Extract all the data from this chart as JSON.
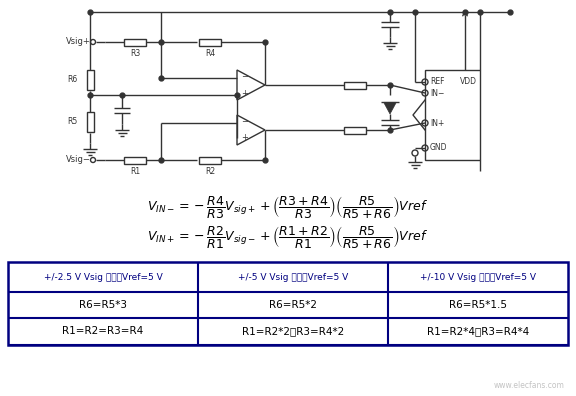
{
  "bg_color": "#ffffff",
  "fig_width": 5.76,
  "fig_height": 3.96,
  "eq1": "$V_{IN-} = -\\dfrac{R4}{R3}V_{sig+} + \\left(\\dfrac{R3+R4}{R3}\\right)\\left(\\dfrac{R5}{R5+R6}\\right)Vref$",
  "eq2": "$V_{IN+} = -\\dfrac{R2}{R1}V_{sig-} + \\left(\\dfrac{R1+R2}{R1}\\right)\\left(\\dfrac{R5}{R5+R6}\\right)Vref$",
  "table_headers": [
    "+/-2.5 V Vsig 范围，Vref=5 V",
    "+/-5 V Vsig 范围，Vref=5 V",
    "+/-10 V Vsig 范围，Vref=5 V"
  ],
  "table_row1": [
    "R6=R5*3",
    "R6=R5*2",
    "R6=R5*1.5"
  ],
  "table_row2": [
    "R1=R2=R3=R4",
    "R1=R2*2，R3=R4*2",
    "R1=R2*4，R3=R4*4"
  ],
  "watermark": "www.elecfans.com",
  "lw": 1.0,
  "lc": "#333333",
  "table_border_color": "#000080",
  "table_header_color": "#000080"
}
